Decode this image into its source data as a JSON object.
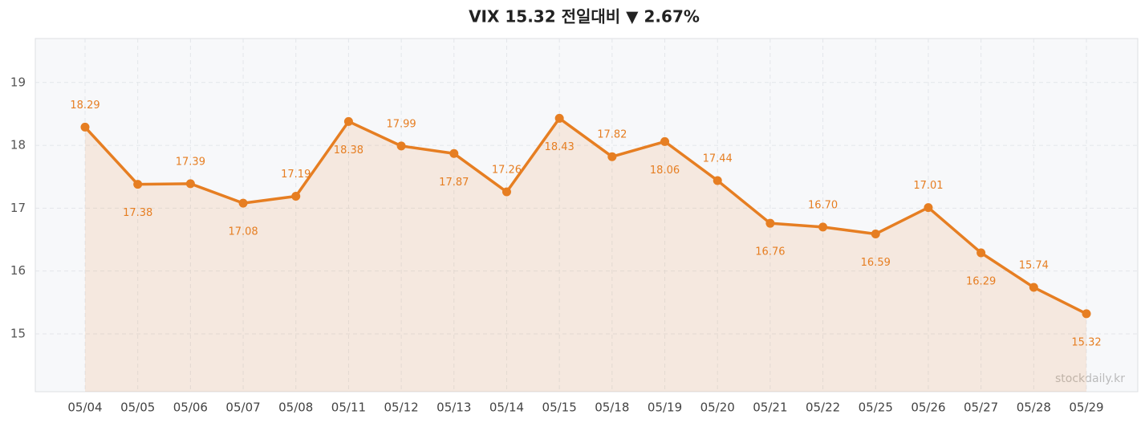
{
  "chart_data": {
    "type": "line",
    "title": "VIX  15.32  전일대비 ▼ 2.67%",
    "categories": [
      "05/04",
      "05/05",
      "05/06",
      "05/07",
      "05/08",
      "05/11",
      "05/12",
      "05/13",
      "05/14",
      "05/15",
      "05/18",
      "05/19",
      "05/20",
      "05/21",
      "05/22",
      "05/25",
      "05/26",
      "05/27",
      "05/28",
      "05/29"
    ],
    "series": [
      {
        "name": "VIX",
        "color": "#e67e22",
        "values": [
          18.29,
          17.38,
          17.39,
          17.08,
          17.19,
          18.38,
          17.99,
          17.87,
          17.26,
          18.43,
          17.82,
          18.06,
          17.44,
          16.76,
          16.7,
          16.59,
          17.01,
          16.29,
          15.74,
          15.32
        ],
        "value_labels": [
          "18.29",
          "17.38",
          "17.39",
          "17.08",
          "17.19",
          "18.38",
          "17.99",
          "17.87",
          "17.26",
          "18.43",
          "17.82",
          "18.06",
          "17.44",
          "16.76",
          "16.70",
          "16.59",
          "17.01",
          "16.29",
          "15.74",
          "15.32"
        ]
      }
    ],
    "ylim": [
      14.08,
      19.7
    ],
    "yticks": [
      15,
      16,
      17,
      18,
      19
    ],
    "grid": true,
    "watermark": "stockdaily.kr"
  }
}
